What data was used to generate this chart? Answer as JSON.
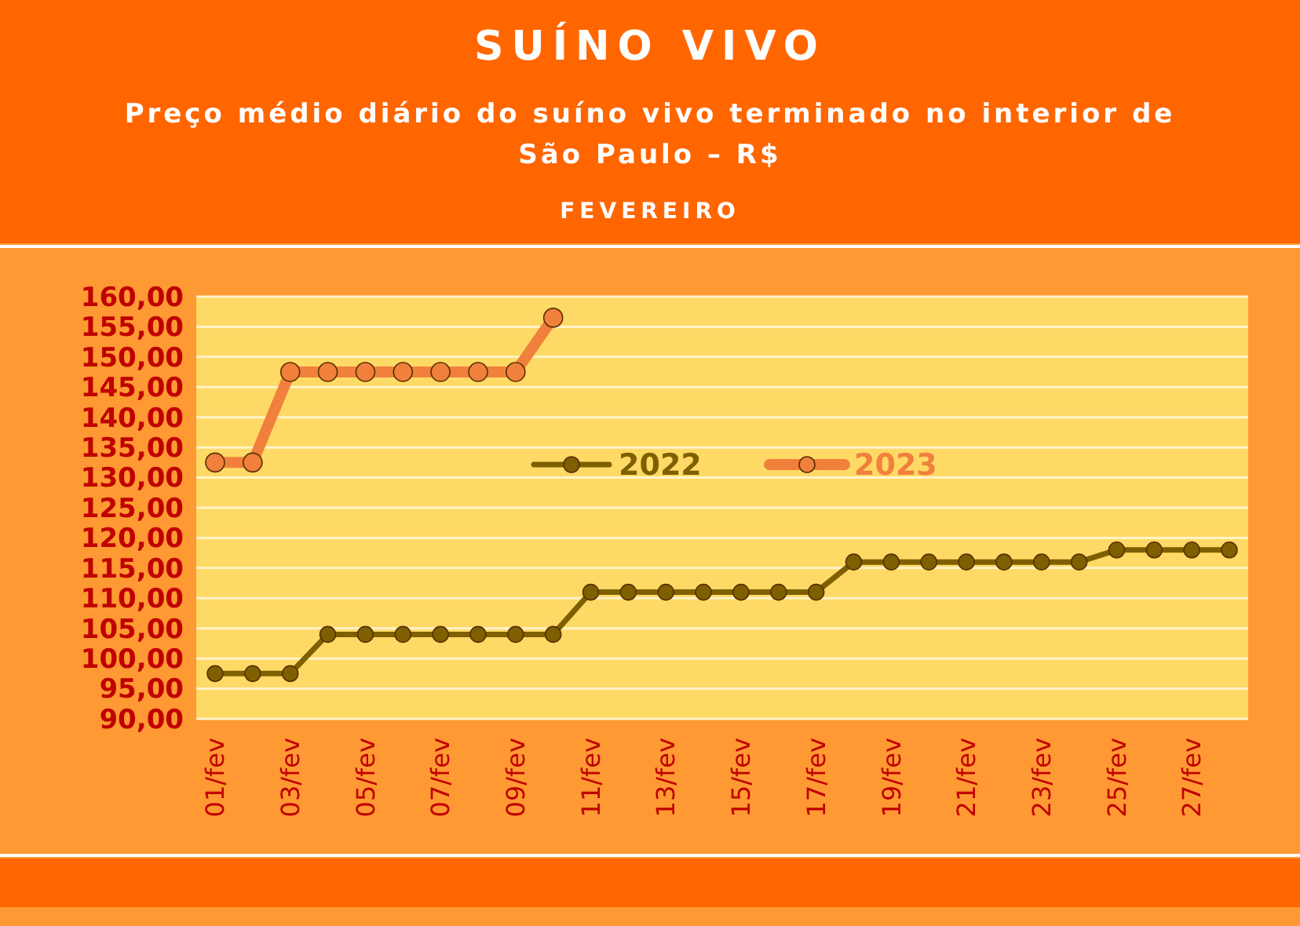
{
  "chart_data": {
    "type": "line",
    "title": "SUÍNO VIVO",
    "subtitle": "Preço médio diário do suíno vivo terminado no interior de São Paulo – R$",
    "annotations": [
      "FEVEREIRO"
    ],
    "categories": [
      "01/fev",
      null,
      "03/fev",
      null,
      "05/fev",
      null,
      "07/fev",
      null,
      "09/fev",
      null,
      "11/fev",
      null,
      "13/fev",
      null,
      "15/fev",
      null,
      "17/fev",
      null,
      "19/fev",
      null,
      "21/fev",
      null,
      "23/fev",
      null,
      "25/fev",
      null,
      "27/fev",
      null
    ],
    "series": [
      {
        "name": "2022",
        "color": "#7f6000",
        "values": [
          97.5,
          97.5,
          97.5,
          104,
          104,
          104,
          104,
          104,
          104,
          104,
          111,
          111,
          111,
          111,
          111,
          111,
          111,
          116,
          116,
          116,
          116,
          116,
          116,
          116,
          118,
          118,
          118,
          118
        ]
      },
      {
        "name": "2023",
        "color": "#f0803c",
        "values": [
          132.5,
          132.5,
          147.5,
          147.5,
          147.5,
          147.5,
          147.5,
          147.5,
          147.5,
          156.5,
          null,
          null,
          null,
          null,
          null,
          null,
          null,
          null,
          null,
          null,
          null,
          null,
          null,
          null,
          null,
          null,
          null,
          null
        ]
      }
    ],
    "ylim": [
      90,
      160
    ],
    "yticks": [
      {
        "value": 90,
        "label": "90,00"
      },
      {
        "value": 95,
        "label": "95,00"
      },
      {
        "value": 100,
        "label": "100,00"
      },
      {
        "value": 105,
        "label": "105,00"
      },
      {
        "value": 110,
        "label": "110,00"
      },
      {
        "value": 115,
        "label": "115,00"
      },
      {
        "value": 120,
        "label": "120,00"
      },
      {
        "value": 125,
        "label": "125,00"
      },
      {
        "value": 130,
        "label": "130,00"
      },
      {
        "value": 135,
        "label": "135,00"
      },
      {
        "value": 140,
        "label": "140,00"
      },
      {
        "value": 145,
        "label": "145,00"
      },
      {
        "value": 150,
        "label": "150,00"
      },
      {
        "value": 155,
        "label": "155,00"
      },
      {
        "value": 160,
        "label": "160,00"
      }
    ],
    "grid": "y",
    "legend": "top",
    "marker": "circle",
    "line_style": "solid"
  }
}
